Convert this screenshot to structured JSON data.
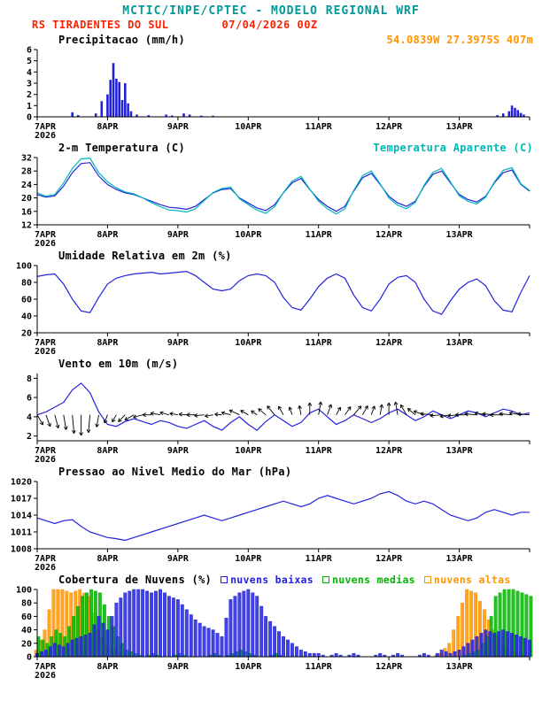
{
  "header": {
    "title": "MCTIC/INPE/CPTEC - MODELO REGIONAL WRF",
    "station": "RS TIRADENTES DO SUL",
    "run": "07/04/2026 00Z",
    "coords": "54.0839W 27.3975S 407m"
  },
  "colors": {
    "blue": "#2222dd",
    "cyan": "#00b8b8",
    "green": "#00b400",
    "orange": "#ff9400",
    "red": "#ff2200",
    "teal": "#009898",
    "black": "#000000"
  },
  "x_axis": {
    "day_labels": [
      "7APR",
      "8APR",
      "9APR",
      "10APR",
      "11APR",
      "12APR",
      "13APR"
    ],
    "year_label": "2026",
    "total_hours": 168
  },
  "chart_data": [
    {
      "type": "bar",
      "title": "Precipitacao (mm/h)",
      "color": "blue",
      "ylim": [
        0,
        6
      ],
      "yticks": [
        0,
        1,
        2,
        3,
        4,
        5,
        6
      ],
      "points": [
        [
          12,
          0.4
        ],
        [
          14,
          0.15
        ],
        [
          20,
          0.3
        ],
        [
          22,
          1.4
        ],
        [
          24,
          2.0
        ],
        [
          25,
          3.3
        ],
        [
          26,
          4.8
        ],
        [
          27,
          3.4
        ],
        [
          28,
          3.1
        ],
        [
          29,
          1.5
        ],
        [
          30,
          3.0
        ],
        [
          31,
          1.2
        ],
        [
          32,
          0.5
        ],
        [
          34,
          0.2
        ],
        [
          38,
          0.15
        ],
        [
          44,
          0.2
        ],
        [
          46,
          0.12
        ],
        [
          50,
          0.3
        ],
        [
          52,
          0.2
        ],
        [
          56,
          0.1
        ],
        [
          60,
          0.1
        ],
        [
          157,
          0.15
        ],
        [
          159,
          0.3
        ],
        [
          161,
          0.5
        ],
        [
          162,
          1.0
        ],
        [
          163,
          0.8
        ],
        [
          164,
          0.6
        ],
        [
          165,
          0.35
        ],
        [
          166,
          0.2
        ]
      ]
    },
    {
      "type": "line",
      "title": "2-m Temperatura (C)",
      "right_label": "Temperatura Aparente (C)",
      "ylim": [
        12,
        32
      ],
      "yticks": [
        12,
        16,
        20,
        24,
        28,
        32
      ],
      "x_step_hours": 3,
      "series": [
        {
          "name": "2-m Temperatura (C)",
          "color": "blue",
          "values": [
            21,
            20.2,
            20.6,
            23.5,
            27.5,
            30.2,
            30.5,
            26.5,
            24,
            22.5,
            21.5,
            21,
            20,
            19,
            18,
            17.2,
            17,
            16.6,
            17.5,
            19.5,
            21.5,
            22.5,
            22.8,
            20,
            18.5,
            17,
            16.2,
            18,
            21.5,
            24.5,
            25.8,
            22.5,
            19.5,
            17.5,
            16,
            17.5,
            22,
            26,
            27.3,
            24,
            20.5,
            18.5,
            17.5,
            19,
            23.5,
            27,
            28,
            24.5,
            21,
            19.5,
            18.8,
            20.5,
            24.5,
            27.5,
            28.3,
            24,
            22
          ]
        },
        {
          "name": "Temperatura Aparente (C)",
          "color": "cyan",
          "values": [
            21.5,
            20.5,
            21,
            24.5,
            28.8,
            31.6,
            31.8,
            27.5,
            24.8,
            23,
            21.8,
            21.2,
            20,
            18.6,
            17.4,
            16.4,
            16.2,
            15.8,
            16.8,
            19.2,
            21.6,
            22.8,
            23.2,
            19.8,
            18,
            16.4,
            15.4,
            17.4,
            21.6,
            25,
            26.4,
            22.6,
            19,
            16.8,
            15.2,
            16.8,
            22.2,
            26.6,
            28,
            24.2,
            20,
            17.8,
            16.8,
            18.6,
            23.8,
            27.6,
            28.8,
            24.8,
            20.6,
            19,
            18.2,
            20.2,
            24.8,
            28.2,
            29,
            24.2,
            22.2
          ]
        }
      ]
    },
    {
      "type": "line",
      "title": "Umidade Relativa em 2m (%)",
      "ylim": [
        20,
        100
      ],
      "yticks": [
        20,
        40,
        60,
        80,
        100
      ],
      "x_step_hours": 3,
      "series": [
        {
          "name": "Umidade Relativa em 2m (%)",
          "color": "blue",
          "values": [
            87,
            89,
            90,
            78,
            60,
            46,
            44,
            62,
            78,
            85,
            88,
            90,
            91,
            92,
            90,
            91,
            92,
            93,
            88,
            80,
            72,
            70,
            72,
            82,
            88,
            90,
            88,
            80,
            62,
            50,
            47,
            60,
            75,
            85,
            90,
            85,
            65,
            50,
            46,
            60,
            78,
            86,
            88,
            80,
            60,
            46,
            42,
            58,
            72,
            80,
            84,
            76,
            58,
            47,
            45,
            68,
            88
          ]
        }
      ]
    },
    {
      "type": "line",
      "title": "Vento em 10m (m/s)",
      "ylim": [
        1.5,
        8.5
      ],
      "yticks": [
        2,
        4,
        6,
        8
      ],
      "x_step_hours": 3,
      "barb_anchor_value": 4.2,
      "wind_dirs_deg": [
        -60,
        -70,
        -75,
        -80,
        -85,
        -90,
        -95,
        -100,
        -110,
        -120,
        -135,
        -150,
        -165,
        180,
        170,
        165,
        170,
        175,
        180,
        -175,
        -170,
        175,
        165,
        155,
        150,
        145,
        140,
        130,
        120,
        110,
        100,
        90,
        80,
        70,
        60,
        55,
        50,
        60,
        70,
        80,
        90,
        100,
        120,
        140,
        160,
        175,
        -175,
        -170,
        -175,
        180,
        175,
        170,
        175,
        180,
        175,
        170,
        175
      ],
      "series": [
        {
          "name": "Vento em 10m (m/s)",
          "color": "blue",
          "values": [
            4.2,
            4.5,
            5,
            5.5,
            6.8,
            7.5,
            6.5,
            4.5,
            3.2,
            3,
            3.5,
            3.8,
            3.5,
            3.2,
            3.6,
            3.4,
            3,
            2.8,
            3.2,
            3.6,
            3,
            2.6,
            3.4,
            4,
            3.2,
            2.6,
            3.5,
            4.2,
            3.6,
            3,
            3.4,
            4.4,
            4.8,
            4,
            3.2,
            3.6,
            4.2,
            3.8,
            3.4,
            3.8,
            4.4,
            4.8,
            4.2,
            3.6,
            4,
            4.6,
            4.2,
            3.8,
            4.2,
            4.6,
            4.4,
            4,
            4.4,
            4.8,
            4.6,
            4.2,
            4.4
          ]
        }
      ]
    },
    {
      "type": "line",
      "title": "Pressao ao Nivel Medio do Mar (hPa)",
      "ylim": [
        1008,
        1020
      ],
      "yticks": [
        1008,
        1011,
        1014,
        1017,
        1020
      ],
      "x_step_hours": 3,
      "series": [
        {
          "name": "Pressao ao Nivel Medio do Mar (hPa)",
          "color": "blue",
          "values": [
            1013.5,
            1013,
            1012.5,
            1013,
            1013.2,
            1012,
            1011,
            1010.5,
            1010,
            1009.8,
            1009.5,
            1010,
            1010.5,
            1011,
            1011.5,
            1012,
            1012.5,
            1013,
            1013.5,
            1014,
            1013.5,
            1013,
            1013.5,
            1014,
            1014.5,
            1015,
            1015.5,
            1016,
            1016.5,
            1016,
            1015.5,
            1016,
            1017,
            1017.5,
            1017,
            1016.5,
            1016,
            1016.5,
            1017,
            1017.8,
            1018.2,
            1017.5,
            1016.5,
            1016,
            1016.5,
            1016,
            1015,
            1014,
            1013.5,
            1013,
            1013.5,
            1014.5,
            1015,
            1014.5,
            1014,
            1014.5,
            1014.5
          ]
        }
      ]
    },
    {
      "type": "bar-multi",
      "title": "Cobertura de Nuvens (%)",
      "ylim": [
        0,
        100
      ],
      "yticks": [
        0,
        20,
        40,
        60,
        80,
        100
      ],
      "x_step_hours": 3,
      "series": [
        {
          "name": "nuvens baixas",
          "color": "blue",
          "values": [
            5,
            10,
            20,
            15,
            25,
            30,
            35,
            60,
            40,
            80,
            95,
            100,
            100,
            95,
            100,
            90,
            85,
            70,
            55,
            45,
            40,
            30,
            85,
            95,
            100,
            90,
            60,
            45,
            30,
            20,
            10,
            5,
            5,
            0,
            5,
            0,
            5,
            0,
            0,
            5,
            0,
            5,
            0,
            0,
            5,
            0,
            10,
            5,
            10,
            20,
            30,
            40,
            35,
            40,
            35,
            30,
            25
          ]
        },
        {
          "name": "nuvens medias",
          "color": "green",
          "values": [
            30,
            20,
            40,
            30,
            60,
            90,
            100,
            95,
            60,
            30,
            10,
            5,
            0,
            5,
            0,
            0,
            5,
            0,
            0,
            0,
            5,
            0,
            5,
            10,
            5,
            0,
            0,
            5,
            0,
            0,
            0,
            0,
            0,
            0,
            0,
            0,
            0,
            0,
            0,
            0,
            0,
            0,
            0,
            0,
            0,
            0,
            0,
            0,
            0,
            5,
            10,
            30,
            90,
            100,
            100,
            95,
            90
          ]
        },
        {
          "name": "nuvens altas",
          "color": "orange",
          "values": [
            10,
            40,
            100,
            100,
            95,
            100,
            90,
            40,
            20,
            10,
            5,
            0,
            0,
            0,
            0,
            0,
            0,
            0,
            0,
            0,
            0,
            0,
            0,
            0,
            0,
            0,
            0,
            0,
            0,
            0,
            0,
            0,
            0,
            0,
            0,
            0,
            0,
            0,
            0,
            0,
            0,
            0,
            0,
            0,
            0,
            0,
            5,
            20,
            60,
            100,
            95,
            70,
            40,
            20,
            10,
            5,
            0
          ]
        }
      ]
    }
  ]
}
